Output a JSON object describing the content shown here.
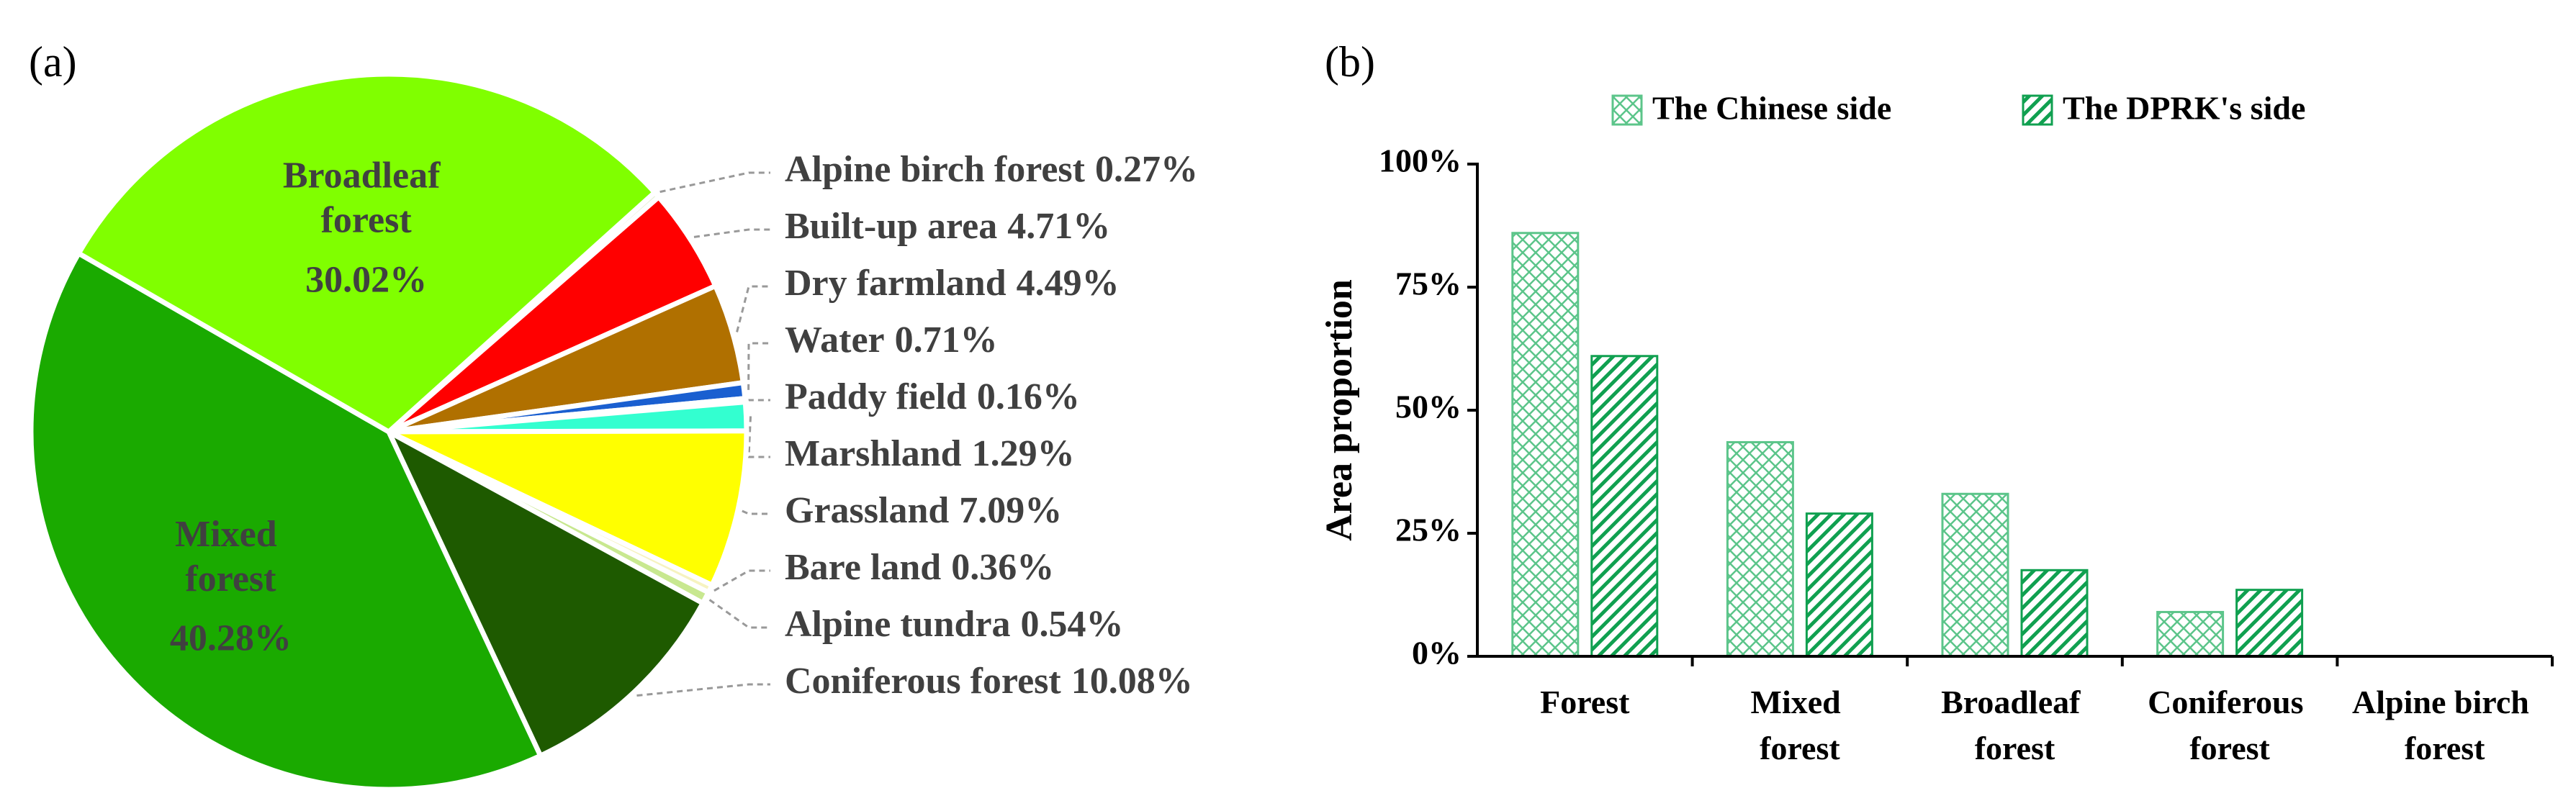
{
  "chart_data": [
    {
      "type": "pie",
      "label": "(a)",
      "categories": [
        "Alpine birch forest",
        "Built-up area",
        "Dry farmland",
        "Water",
        "Paddy field",
        "Marshland",
        "Grassland",
        "Bare land",
        "Alpine tundra",
        "Coniferous forest",
        "Mixed forest",
        "Broadleaf forest"
      ],
      "values": [
        0.27,
        4.71,
        4.49,
        0.71,
        0.16,
        1.29,
        7.09,
        0.36,
        0.54,
        10.08,
        40.28,
        30.02
      ],
      "value_labels": [
        "0.27%",
        "4.71%",
        "4.49%",
        "0.71%",
        "0.16%",
        "1.29%",
        "7.09%",
        "0.36%",
        "0.54%",
        "10.08%",
        "40.28%",
        "30.02%"
      ],
      "colors": [
        "#e6f2d8",
        "#ff0000",
        "#b07000",
        "#1a5fd0",
        "#e8e8e8",
        "#33ffd0",
        "#ffff00",
        "#f6f3c0",
        "#c8e890",
        "#1e5a00",
        "#1aaa00",
        "#80ff00"
      ]
    },
    {
      "type": "bar",
      "label": "(b)",
      "categories": [
        "Forest",
        "Mixed forest",
        "Broadleaf forest",
        "Coniferous forest",
        "Alpine birch forest"
      ],
      "series": [
        {
          "name": "The Chinese side",
          "color": "#5cc58a",
          "hatch": "crosshatch",
          "values": [
            86,
            43.5,
            33,
            9,
            0
          ]
        },
        {
          "name": "The DPRK's side",
          "color": "#10a050",
          "hatch": "diagonal",
          "values": [
            61,
            29,
            17.5,
            13.5,
            0
          ]
        }
      ],
      "ylabel": "Area proportion",
      "ylim": [
        0,
        100
      ],
      "yticks": [
        {
          "value": 0,
          "label": "0%"
        },
        {
          "value": 25,
          "label": "25%"
        },
        {
          "value": 50,
          "label": "50%"
        },
        {
          "value": 75,
          "label": "75%"
        },
        {
          "value": 100,
          "label": "100%"
        }
      ]
    }
  ]
}
